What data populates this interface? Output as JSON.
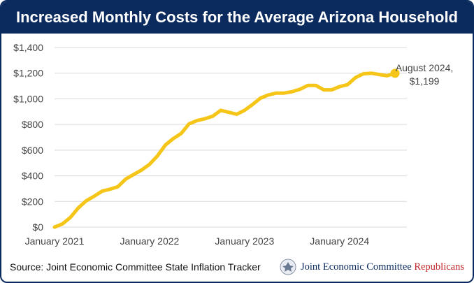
{
  "title": "Increased Monthly Costs for the Average Arizona Household",
  "source": "Source: Joint Economic Committee State Inflation Tracker",
  "logo": {
    "main": "Joint Economic Committee",
    "party": "Republicans",
    "icon": "seal-icon"
  },
  "colors": {
    "banner": "#0b2a5e",
    "line": "#f5c518",
    "grid": "#d9d9d9",
    "party": "#c0282d"
  },
  "chart_data": {
    "type": "line",
    "title": "Increased Monthly Costs for the Average Arizona Household",
    "xlabel": "",
    "ylabel": "",
    "ylim": [
      0,
      1400
    ],
    "y_ticks": [
      "$0",
      "$200",
      "$400",
      "$600",
      "$800",
      "$1,000",
      "$1,200",
      "$1,400"
    ],
    "y_tick_values": [
      0,
      200,
      400,
      600,
      800,
      1000,
      1200,
      1400
    ],
    "x_ticks": [
      "January 2021",
      "January 2022",
      "January 2023",
      "January 2024"
    ],
    "grid": true,
    "annotation": {
      "line1": "August 2024,",
      "line2": "$1,199"
    },
    "series": [
      {
        "x": [
          "2021-01",
          "2021-02",
          "2021-03",
          "2021-04",
          "2021-05",
          "2021-06",
          "2021-07",
          "2021-08",
          "2021-09",
          "2021-10",
          "2021-11",
          "2021-12",
          "2022-01",
          "2022-02",
          "2022-03",
          "2022-04",
          "2022-05",
          "2022-06",
          "2022-07",
          "2022-08",
          "2022-09",
          "2022-10",
          "2022-11",
          "2022-12",
          "2023-01",
          "2023-02",
          "2023-03",
          "2023-04",
          "2023-05",
          "2023-06",
          "2023-07",
          "2023-08",
          "2023-09",
          "2023-10",
          "2023-11",
          "2023-12",
          "2024-01",
          "2024-02",
          "2024-03",
          "2024-04",
          "2024-05",
          "2024-06",
          "2024-07",
          "2024-08"
        ],
        "values": [
          0,
          25,
          75,
          150,
          205,
          240,
          280,
          295,
          315,
          375,
          410,
          445,
          490,
          555,
          640,
          690,
          730,
          805,
          830,
          845,
          865,
          910,
          895,
          880,
          910,
          955,
          1005,
          1030,
          1045,
          1045,
          1055,
          1075,
          1105,
          1105,
          1070,
          1070,
          1095,
          1110,
          1165,
          1195,
          1200,
          1190,
          1180,
          1199
        ]
      }
    ]
  }
}
